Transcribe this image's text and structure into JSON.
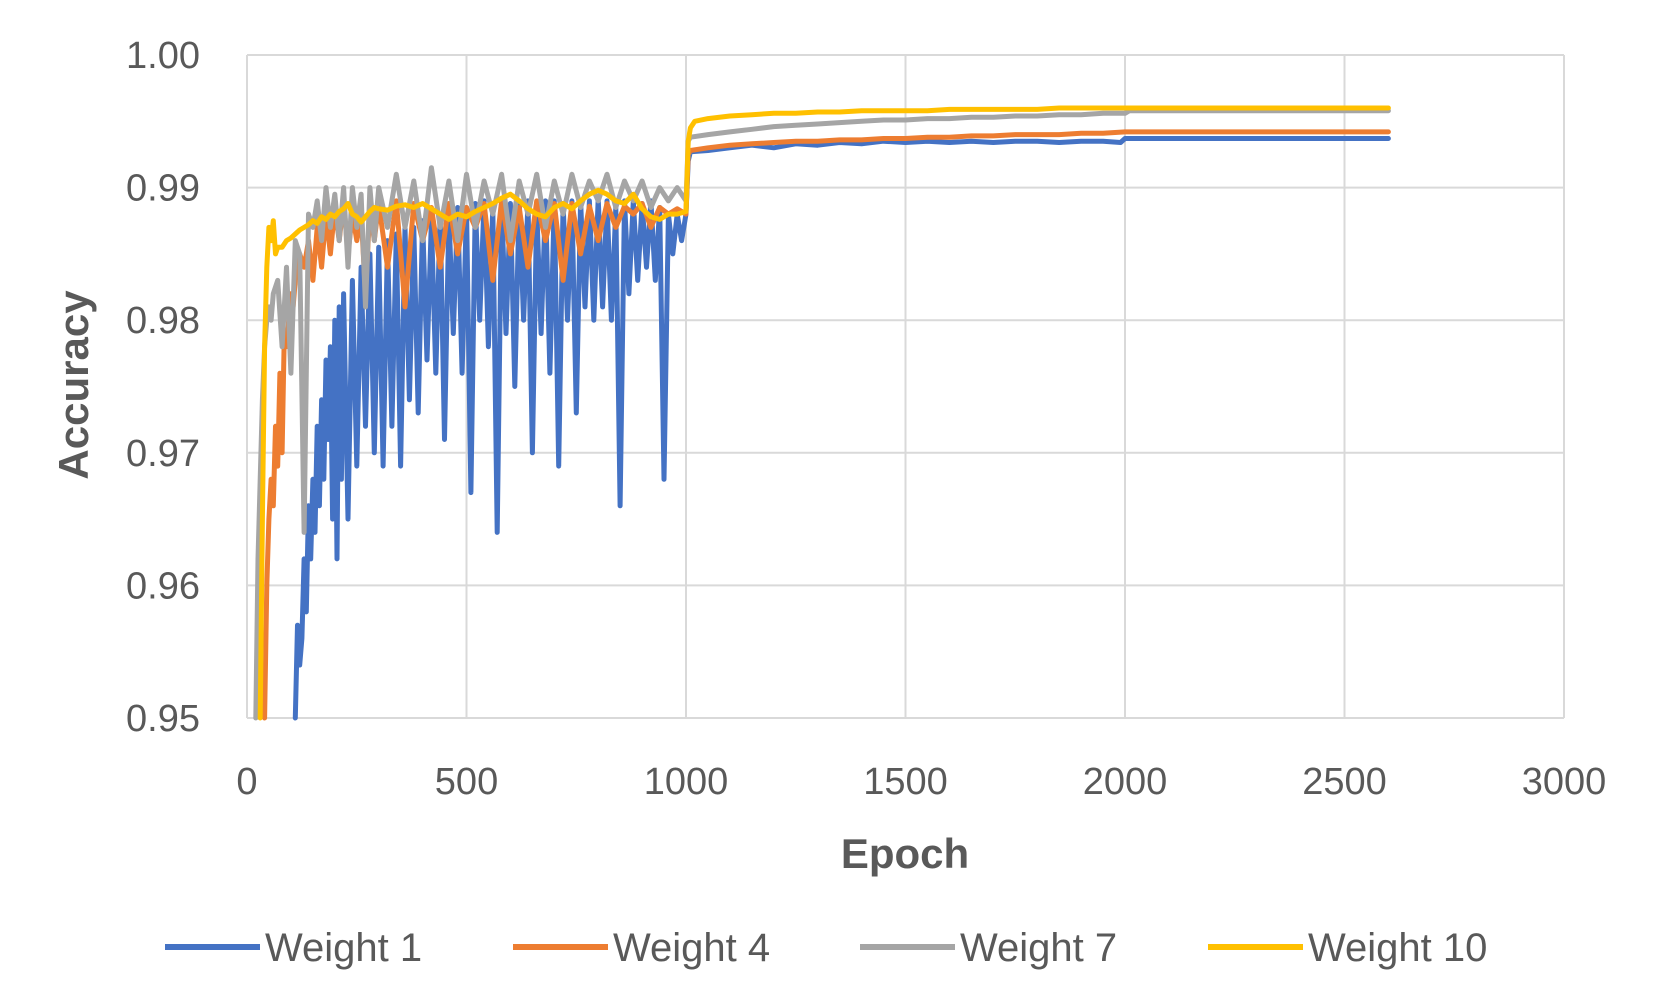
{
  "chart_data": {
    "type": "line",
    "title": "",
    "xlabel": "Epoch",
    "ylabel": "Accuracy",
    "xlim": [
      0,
      3000
    ],
    "ylim": [
      0.95,
      1.0
    ],
    "xticks": [
      0,
      500,
      1000,
      1500,
      2000,
      2500,
      3000
    ],
    "xtick_labels": [
      "0",
      "500",
      "1000",
      "1500",
      "2000",
      "2500",
      "3000"
    ],
    "yticks": [
      0.95,
      0.96,
      0.97,
      0.98,
      0.99,
      1.0
    ],
    "ytick_labels": [
      "0.95",
      "0.96",
      "0.97",
      "0.98",
      "0.99",
      "1.00"
    ],
    "grid": true,
    "legend_position": "bottom",
    "series": [
      {
        "name": "Weight 1",
        "color": "#4472C4",
        "x": [
          110,
          115,
          120,
          125,
          130,
          135,
          140,
          145,
          150,
          155,
          160,
          165,
          170,
          175,
          180,
          185,
          190,
          195,
          200,
          205,
          210,
          215,
          220,
          230,
          240,
          250,
          260,
          270,
          280,
          290,
          300,
          310,
          320,
          330,
          340,
          350,
          360,
          370,
          380,
          390,
          400,
          410,
          420,
          430,
          440,
          450,
          460,
          470,
          480,
          490,
          500,
          510,
          520,
          530,
          540,
          550,
          560,
          570,
          580,
          590,
          600,
          610,
          620,
          630,
          640,
          650,
          660,
          670,
          680,
          690,
          700,
          710,
          720,
          730,
          740,
          750,
          760,
          770,
          780,
          790,
          800,
          810,
          820,
          830,
          840,
          850,
          860,
          870,
          880,
          890,
          900,
          910,
          920,
          930,
          940,
          950,
          960,
          970,
          980,
          990,
          1000,
          1005,
          1010,
          1050,
          1100,
          1150,
          1200,
          1250,
          1300,
          1350,
          1400,
          1450,
          1500,
          1550,
          1600,
          1650,
          1700,
          1750,
          1800,
          1850,
          1900,
          1950,
          1990,
          2000,
          2010,
          2050,
          2100,
          2200,
          2300,
          2400,
          2500,
          2600
        ],
        "y": [
          0.95,
          0.957,
          0.954,
          0.956,
          0.962,
          0.958,
          0.966,
          0.962,
          0.968,
          0.964,
          0.972,
          0.966,
          0.974,
          0.968,
          0.977,
          0.971,
          0.978,
          0.965,
          0.98,
          0.962,
          0.981,
          0.968,
          0.982,
          0.965,
          0.983,
          0.969,
          0.984,
          0.972,
          0.985,
          0.97,
          0.9855,
          0.969,
          0.986,
          0.972,
          0.9865,
          0.969,
          0.987,
          0.974,
          0.987,
          0.973,
          0.9875,
          0.977,
          0.9875,
          0.976,
          0.988,
          0.971,
          0.988,
          0.979,
          0.9885,
          0.976,
          0.9885,
          0.967,
          0.9888,
          0.98,
          0.989,
          0.978,
          0.9885,
          0.964,
          0.989,
          0.979,
          0.9888,
          0.975,
          0.989,
          0.98,
          0.989,
          0.97,
          0.9885,
          0.979,
          0.989,
          0.976,
          0.989,
          0.969,
          0.9888,
          0.98,
          0.989,
          0.973,
          0.989,
          0.981,
          0.989,
          0.98,
          0.9892,
          0.981,
          0.989,
          0.98,
          0.9885,
          0.966,
          0.989,
          0.982,
          0.989,
          0.983,
          0.9888,
          0.984,
          0.989,
          0.983,
          0.9885,
          0.968,
          0.988,
          0.985,
          0.988,
          0.986,
          0.988,
          0.992,
          0.9927,
          0.9928,
          0.993,
          0.9932,
          0.993,
          0.9933,
          0.9932,
          0.9934,
          0.9933,
          0.9935,
          0.9934,
          0.9935,
          0.9934,
          0.9935,
          0.9934,
          0.9935,
          0.9935,
          0.9934,
          0.9935,
          0.9935,
          0.9934,
          0.9937,
          0.9937,
          0.9937,
          0.9937,
          0.9937,
          0.9937,
          0.9937,
          0.9937,
          0.9937
        ]
      },
      {
        "name": "Weight 4",
        "color": "#ED7D31",
        "x": [
          40,
          45,
          50,
          55,
          60,
          65,
          70,
          75,
          80,
          85,
          90,
          95,
          100,
          105,
          110,
          120,
          130,
          140,
          150,
          160,
          170,
          180,
          190,
          200,
          210,
          220,
          230,
          240,
          250,
          260,
          270,
          280,
          290,
          300,
          320,
          340,
          360,
          380,
          400,
          420,
          440,
          460,
          480,
          500,
          520,
          540,
          560,
          580,
          600,
          620,
          640,
          660,
          680,
          700,
          720,
          740,
          760,
          780,
          800,
          820,
          840,
          860,
          880,
          900,
          920,
          940,
          960,
          980,
          1000,
          1005,
          1010,
          1050,
          1100,
          1150,
          1200,
          1250,
          1300,
          1350,
          1400,
          1450,
          1500,
          1550,
          1600,
          1650,
          1700,
          1750,
          1800,
          1850,
          1900,
          1950,
          2000,
          2050,
          2100,
          2200,
          2300,
          2400,
          2500,
          2600
        ],
        "y": [
          0.95,
          0.96,
          0.965,
          0.968,
          0.966,
          0.972,
          0.969,
          0.976,
          0.97,
          0.979,
          0.978,
          0.98,
          0.982,
          0.981,
          0.983,
          0.985,
          0.984,
          0.986,
          0.983,
          0.987,
          0.984,
          0.988,
          0.985,
          0.9885,
          0.986,
          0.989,
          0.985,
          0.988,
          0.986,
          0.988,
          0.982,
          0.9885,
          0.986,
          0.9888,
          0.984,
          0.989,
          0.981,
          0.9888,
          0.986,
          0.9885,
          0.984,
          0.9888,
          0.985,
          0.9885,
          0.987,
          0.9888,
          0.983,
          0.989,
          0.985,
          0.9885,
          0.984,
          0.989,
          0.986,
          0.9888,
          0.983,
          0.9888,
          0.985,
          0.9886,
          0.986,
          0.9888,
          0.987,
          0.9886,
          0.988,
          0.9888,
          0.987,
          0.9885,
          0.988,
          0.9884,
          0.988,
          0.9925,
          0.9928,
          0.993,
          0.9932,
          0.9933,
          0.9934,
          0.9935,
          0.9935,
          0.9936,
          0.9936,
          0.9937,
          0.9937,
          0.9938,
          0.9938,
          0.9939,
          0.9939,
          0.994,
          0.994,
          0.994,
          0.9941,
          0.9941,
          0.9942,
          0.9942,
          0.9942,
          0.9942,
          0.9942,
          0.9942,
          0.9942,
          0.9942
        ]
      },
      {
        "name": "Weight 7",
        "color": "#A5A5A5",
        "x": [
          20,
          25,
          30,
          35,
          40,
          45,
          50,
          55,
          60,
          70,
          80,
          90,
          100,
          110,
          120,
          130,
          140,
          150,
          160,
          170,
          180,
          190,
          200,
          210,
          220,
          230,
          240,
          250,
          260,
          270,
          280,
          290,
          300,
          320,
          340,
          360,
          380,
          400,
          420,
          440,
          460,
          480,
          500,
          520,
          540,
          560,
          580,
          600,
          620,
          640,
          660,
          680,
          700,
          720,
          740,
          760,
          780,
          800,
          820,
          840,
          860,
          880,
          900,
          920,
          940,
          960,
          980,
          1000,
          1005,
          1010,
          1050,
          1100,
          1150,
          1200,
          1250,
          1300,
          1350,
          1400,
          1450,
          1500,
          1550,
          1600,
          1650,
          1700,
          1750,
          1800,
          1850,
          1900,
          1950,
          2000,
          2010,
          2050,
          2100,
          2200,
          2300,
          2400,
          2500,
          2600
        ],
        "y": [
          0.95,
          0.962,
          0.968,
          0.974,
          0.978,
          0.98,
          0.981,
          0.98,
          0.982,
          0.983,
          0.978,
          0.984,
          0.976,
          0.986,
          0.985,
          0.964,
          0.988,
          0.987,
          0.989,
          0.986,
          0.99,
          0.987,
          0.9895,
          0.986,
          0.99,
          0.984,
          0.99,
          0.987,
          0.9895,
          0.981,
          0.99,
          0.986,
          0.99,
          0.987,
          0.991,
          0.987,
          0.9905,
          0.986,
          0.9915,
          0.987,
          0.9905,
          0.986,
          0.991,
          0.987,
          0.9905,
          0.988,
          0.991,
          0.986,
          0.9905,
          0.988,
          0.991,
          0.987,
          0.9905,
          0.988,
          0.991,
          0.9885,
          0.9905,
          0.989,
          0.991,
          0.9885,
          0.9905,
          0.989,
          0.9905,
          0.9885,
          0.99,
          0.989,
          0.99,
          0.989,
          0.9935,
          0.9938,
          0.994,
          0.9942,
          0.9944,
          0.9946,
          0.9947,
          0.9948,
          0.9949,
          0.995,
          0.9951,
          0.9951,
          0.9952,
          0.9952,
          0.9953,
          0.9953,
          0.9954,
          0.9954,
          0.9955,
          0.9955,
          0.9956,
          0.9956,
          0.9958,
          0.9958,
          0.9958,
          0.9958,
          0.9958,
          0.9958,
          0.9958,
          0.9958
        ]
      },
      {
        "name": "Weight 10",
        "color": "#FFC000",
        "x": [
          30,
          35,
          40,
          45,
          50,
          55,
          60,
          65,
          70,
          80,
          90,
          100,
          110,
          120,
          130,
          140,
          150,
          160,
          170,
          180,
          190,
          200,
          210,
          220,
          230,
          240,
          250,
          260,
          270,
          280,
          290,
          300,
          320,
          340,
          360,
          380,
          400,
          420,
          440,
          460,
          480,
          500,
          520,
          540,
          560,
          580,
          600,
          620,
          640,
          660,
          680,
          700,
          720,
          740,
          760,
          780,
          800,
          820,
          840,
          860,
          880,
          900,
          920,
          940,
          960,
          980,
          1000,
          1005,
          1010,
          1020,
          1050,
          1100,
          1150,
          1200,
          1250,
          1300,
          1350,
          1400,
          1450,
          1500,
          1550,
          1600,
          1650,
          1700,
          1750,
          1800,
          1850,
          1900,
          1950,
          2000,
          2050,
          2100,
          2200,
          2300,
          2400,
          2500,
          2600
        ],
        "y": [
          0.95,
          0.965,
          0.978,
          0.984,
          0.987,
          0.986,
          0.9875,
          0.985,
          0.9855,
          0.9855,
          0.986,
          0.9862,
          0.9865,
          0.9868,
          0.987,
          0.9872,
          0.9875,
          0.9873,
          0.9878,
          0.9876,
          0.988,
          0.9878,
          0.9882,
          0.9884,
          0.9888,
          0.988,
          0.9878,
          0.9874,
          0.9878,
          0.9882,
          0.9885,
          0.9884,
          0.9883,
          0.9886,
          0.9887,
          0.9885,
          0.9888,
          0.9884,
          0.988,
          0.9876,
          0.988,
          0.9878,
          0.9882,
          0.9885,
          0.9888,
          0.9892,
          0.9895,
          0.989,
          0.9884,
          0.988,
          0.9878,
          0.9885,
          0.9888,
          0.9884,
          0.989,
          0.9895,
          0.9898,
          0.9895,
          0.989,
          0.9888,
          0.9895,
          0.9884,
          0.9878,
          0.9876,
          0.988,
          0.988,
          0.9882,
          0.9935,
          0.9945,
          0.995,
          0.9952,
          0.9954,
          0.9955,
          0.9956,
          0.9956,
          0.9957,
          0.9957,
          0.9958,
          0.9958,
          0.9958,
          0.9958,
          0.9959,
          0.9959,
          0.9959,
          0.9959,
          0.9959,
          0.996,
          0.996,
          0.996,
          0.996,
          0.996,
          0.996,
          0.996,
          0.996,
          0.996,
          0.996,
          0.996
        ]
      }
    ]
  }
}
